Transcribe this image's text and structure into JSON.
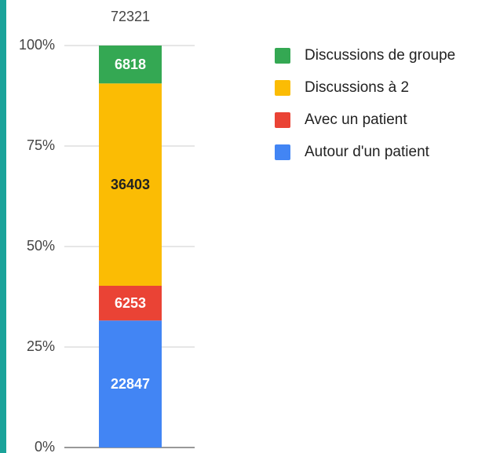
{
  "chart_data": {
    "type": "bar",
    "stacked": "percent",
    "total": 72321,
    "categories": [
      null
    ],
    "series": [
      {
        "name": "Autour d'un patient",
        "color": "#4285f4",
        "values": [
          22847
        ]
      },
      {
        "name": "Avec un patient",
        "color": "#ea4335",
        "values": [
          6253
        ]
      },
      {
        "name": "Discussions à 2",
        "color": "#fbbc04",
        "values": [
          36403
        ]
      },
      {
        "name": "Discussions de groupe",
        "color": "#34a853",
        "values": [
          6818
        ]
      }
    ],
    "ylim": [
      0,
      100
    ],
    "yticks": [
      {
        "value": 0,
        "label": "0%"
      },
      {
        "value": 25,
        "label": "25%"
      },
      {
        "value": 50,
        "label": "50%"
      },
      {
        "value": 75,
        "label": "75%"
      },
      {
        "value": 100,
        "label": "100%"
      }
    ],
    "grid": true,
    "legend": "right"
  }
}
